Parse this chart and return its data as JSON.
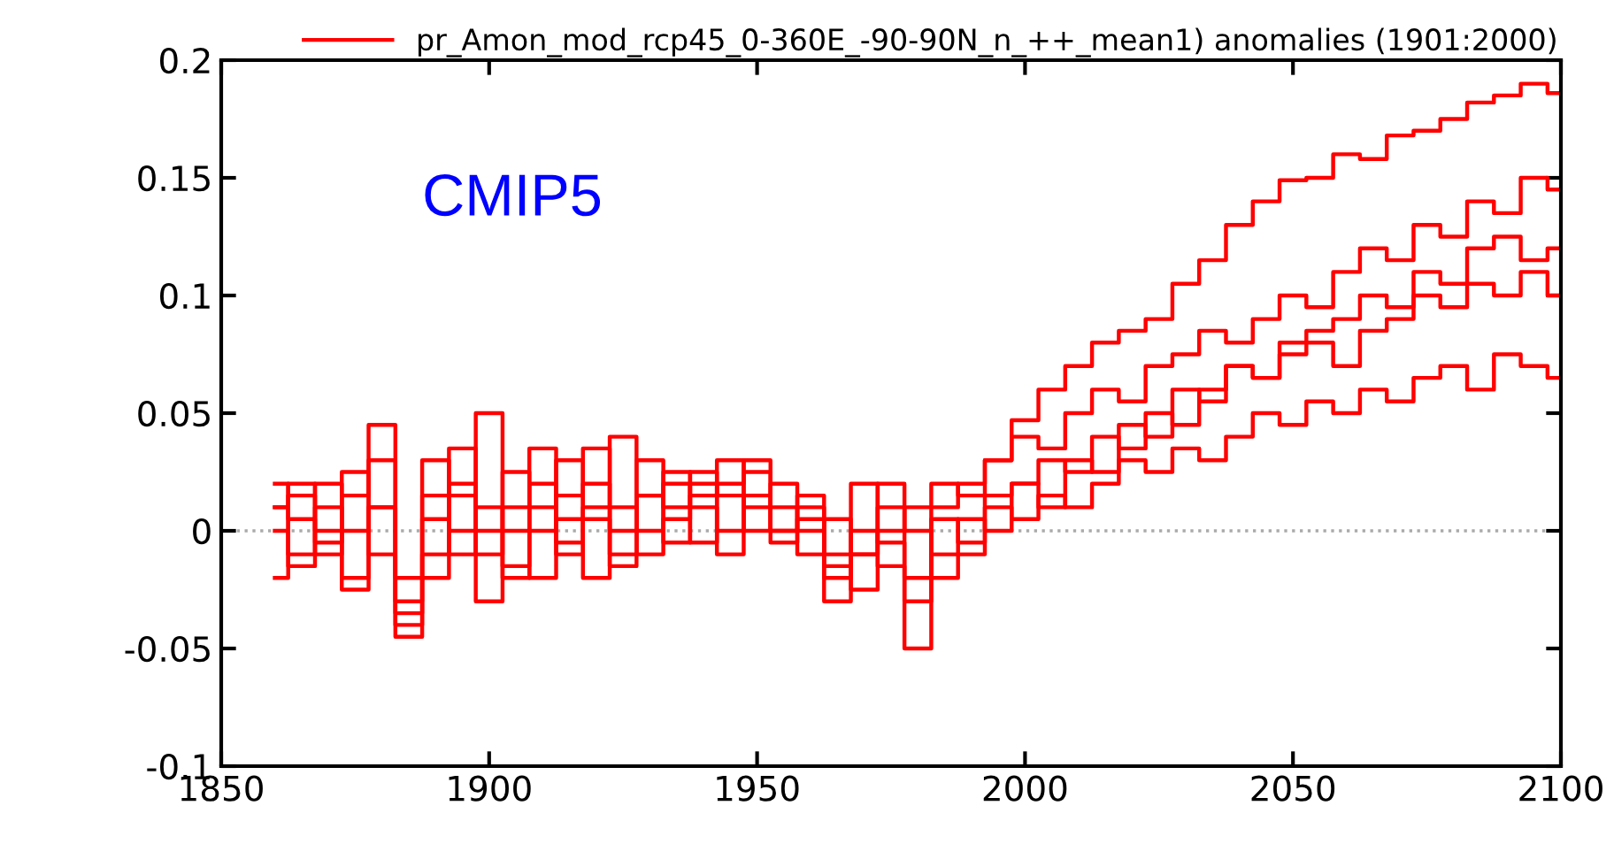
{
  "chart_data": {
    "type": "step",
    "annotations": [
      "CMIP5"
    ],
    "legend": "top right",
    "grid": false,
    "line_style": "solid",
    "marker": "none",
    "x": [
      1860,
      1865,
      1870,
      1875,
      1880,
      1885,
      1890,
      1895,
      1900,
      1905,
      1910,
      1915,
      1920,
      1925,
      1930,
      1935,
      1940,
      1945,
      1950,
      1955,
      1960,
      1965,
      1970,
      1975,
      1980,
      1985,
      1990,
      1995,
      2000,
      2005,
      2010,
      2015,
      2020,
      2025,
      2030,
      2035,
      2040,
      2045,
      2050,
      2055,
      2060,
      2065,
      2070,
      2075,
      2080,
      2085,
      2090,
      2095,
      2100
    ],
    "series": [
      {
        "name": "pr_Amon_mod_rcp45_0-360E_-90-90N_n_++_mean1) anomalies (1901:2000)",
        "color": "#ff0000",
        "values": [
          0.01,
          -0.01,
          0.02,
          0.0,
          0.01,
          -0.03,
          0.005,
          0.02,
          -0.01,
          0.01,
          0.0,
          0.03,
          0.005,
          -0.01,
          0.015,
          0.01,
          0.02,
          0.015,
          0.01,
          0.0,
          0.005,
          -0.02,
          -0.01,
          0.0,
          0.01,
          0.02,
          0.015,
          0.03,
          0.047,
          0.06,
          0.07,
          0.08,
          0.085,
          0.09,
          0.105,
          0.115,
          0.13,
          0.14,
          0.149,
          0.15,
          0.16,
          0.158,
          0.168,
          0.17,
          0.175,
          0.182,
          0.185,
          0.19,
          0.186
        ]
      },
      {
        "color": "#ff0000",
        "values": [
          -0.02,
          0.015,
          -0.005,
          0.025,
          -0.01,
          -0.045,
          -0.02,
          0.035,
          0.01,
          -0.015,
          0.02,
          -0.005,
          0.01,
          0.04,
          -0.01,
          0.005,
          0.025,
          0.0,
          0.015,
          -0.005,
          0.01,
          -0.03,
          0.0,
          -0.015,
          -0.05,
          -0.01,
          0.005,
          0.0,
          0.02,
          0.01,
          0.03,
          0.025,
          0.045,
          0.04,
          0.06,
          0.055,
          0.07,
          0.065,
          0.08,
          0.085,
          0.09,
          0.1,
          0.095,
          0.11,
          0.105,
          0.12,
          0.125,
          0.115,
          0.12
        ]
      },
      {
        "color": "#ff0000",
        "values": [
          0.0,
          -0.015,
          0.01,
          -0.02,
          0.03,
          -0.035,
          0.015,
          -0.01,
          0.05,
          0.0,
          -0.02,
          0.015,
          0.02,
          -0.015,
          0.03,
          -0.005,
          0.015,
          0.03,
          0.0,
          0.02,
          -0.01,
          0.005,
          -0.025,
          0.01,
          0.0,
          -0.02,
          -0.01,
          0.01,
          0.005,
          0.015,
          0.01,
          0.02,
          0.03,
          0.025,
          0.035,
          0.03,
          0.04,
          0.05,
          0.045,
          0.055,
          0.05,
          0.06,
          0.055,
          0.065,
          0.07,
          0.06,
          0.075,
          0.07,
          0.065
        ]
      },
      {
        "color": "#ff0000",
        "values": [
          0.02,
          0.005,
          -0.01,
          0.015,
          0.045,
          -0.02,
          0.03,
          0.0,
          -0.03,
          0.025,
          0.01,
          -0.01,
          0.035,
          0.0,
          0.015,
          0.025,
          -0.005,
          0.02,
          0.03,
          0.01,
          0.0,
          -0.01,
          0.02,
          -0.005,
          -0.03,
          0.01,
          0.02,
          0.03,
          0.04,
          0.035,
          0.05,
          0.06,
          0.055,
          0.07,
          0.075,
          0.085,
          0.08,
          0.09,
          0.1,
          0.095,
          0.11,
          0.12,
          0.115,
          0.13,
          0.125,
          0.14,
          0.135,
          0.15,
          0.145
        ]
      },
      {
        "color": "#ff0000",
        "values": [
          0.01,
          0.02,
          0.0,
          -0.025,
          0.01,
          -0.04,
          -0.01,
          0.015,
          0.0,
          -0.02,
          0.035,
          0.005,
          -0.02,
          0.01,
          0.0,
          0.02,
          0.01,
          -0.01,
          0.025,
          0.0,
          0.015,
          -0.015,
          -0.01,
          0.02,
          -0.02,
          0.005,
          -0.005,
          0.015,
          0.02,
          0.03,
          0.025,
          0.04,
          0.035,
          0.05,
          0.045,
          0.06,
          0.07,
          0.065,
          0.075,
          0.08,
          0.07,
          0.085,
          0.09,
          0.1,
          0.095,
          0.105,
          0.1,
          0.11,
          0.1
        ]
      }
    ],
    "xlim": [
      1850,
      2100
    ],
    "xticks": [
      1850,
      1900,
      1950,
      2000,
      2050,
      2100
    ],
    "ylim": [
      -0.1,
      0.2
    ],
    "yticks": [
      -0.1,
      -0.05,
      0,
      0.05,
      0.1,
      0.15,
      0.2
    ],
    "ref_lines": [
      {
        "axis": "y",
        "value": 0,
        "color": "#aaaaaa",
        "line_style": "dotted"
      }
    ]
  }
}
